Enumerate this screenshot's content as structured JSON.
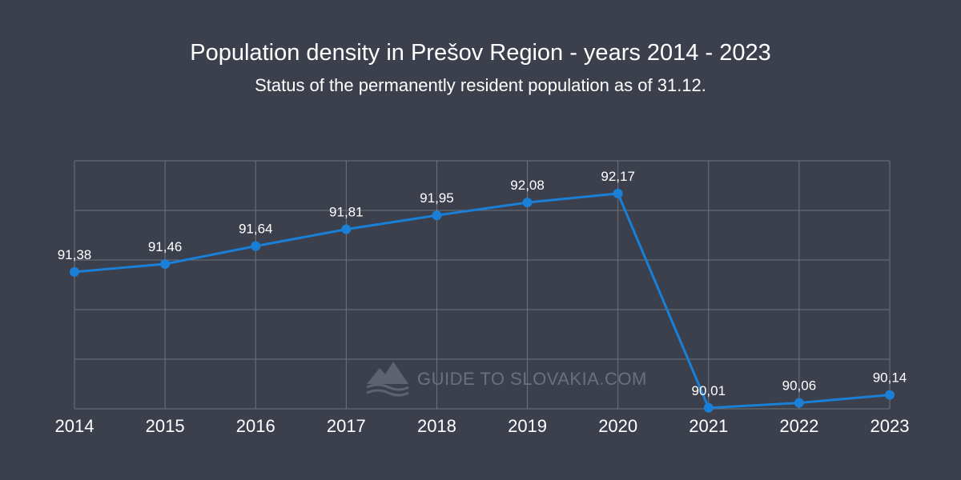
{
  "header": {
    "title": "Population density in Prešov Region - years 2014 - 2023",
    "subtitle": "Status of the permanently resident population as of 31.12."
  },
  "watermark": {
    "text": "GUIDE TO SLOVAKIA.COM",
    "icon": "mountains-icon"
  },
  "colors": {
    "background": "#3b404c",
    "line": "#1a7fd6",
    "grid": "#6e737d"
  },
  "chart_data": {
    "type": "line",
    "title": "Population density in Prešov Region - years 2014 - 2023",
    "subtitle": "Status of the permanently resident population as of 31.12.",
    "categories": [
      "2014",
      "2015",
      "2016",
      "2017",
      "2018",
      "2019",
      "2020",
      "2021",
      "2022",
      "2023"
    ],
    "values": [
      91.38,
      91.46,
      91.64,
      91.81,
      91.95,
      92.08,
      92.17,
      90.01,
      90.06,
      90.14
    ],
    "value_labels": [
      "91,38",
      "91,46",
      "91,64",
      "91,81",
      "91,95",
      "92,08",
      "92,17",
      "90,01",
      "90,06",
      "90,14"
    ],
    "xlabel": "",
    "ylabel": "",
    "ylim": [
      90.0,
      92.5
    ],
    "grid": true,
    "legend": "none"
  }
}
